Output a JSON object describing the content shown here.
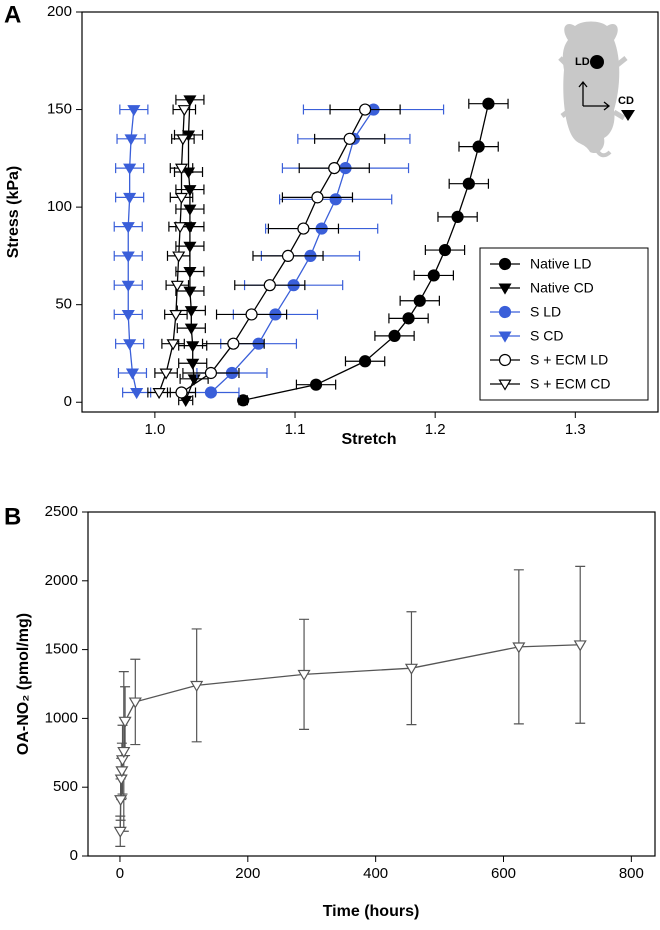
{
  "chart_data": [
    {
      "type": "line",
      "panel": "A",
      "x_label": "Stretch",
      "y_label": "Stress (kPa)",
      "xlim": [
        0.948,
        1.359
      ],
      "ylim": [
        -5,
        200
      ],
      "xticks": [
        {
          "value": 1,
          "label": "1.0"
        },
        1.1,
        1.2,
        1.3
      ],
      "yticks": [
        0,
        50,
        100,
        150,
        200
      ],
      "legend": "lower right",
      "inset_labels": [
        "LD",
        "CD"
      ],
      "series": [
        {
          "name": "Native LD",
          "color": "#000000",
          "marker": "circle",
          "open": false,
          "x": [
            1.063,
            1.115,
            1.15,
            1.171,
            1.181,
            1.189,
            1.199,
            1.207,
            1.216,
            1.224,
            1.231,
            1.238
          ],
          "y": [
            1,
            9,
            21,
            34,
            43,
            52,
            65,
            78,
            95,
            112,
            131,
            153
          ],
          "xerr": [
            0.003,
            0.014,
            0.014,
            0.014,
            0.014,
            0.014,
            0.014,
            0.014,
            0.014,
            0.014,
            0.014,
            0.014
          ]
        },
        {
          "name": "Native CD",
          "color": "#000000",
          "marker": "triangle-down",
          "open": false,
          "x": [
            1.022,
            1.028,
            1.027,
            1.027,
            1.026,
            1.026,
            1.025,
            1.025,
            1.025,
            1.025,
            1.025,
            1.025,
            1.024,
            1.024,
            1.025
          ],
          "y": [
            1,
            12,
            20,
            29,
            38,
            47,
            57,
            67,
            80,
            90,
            99,
            109,
            118,
            137,
            155
          ],
          "xerr": [
            0.005,
            0.01,
            0.01,
            0.01,
            0.01,
            0.01,
            0.01,
            0.01,
            0.01,
            0.01,
            0.01,
            0.01,
            0.01,
            0.01,
            0.01
          ]
        },
        {
          "name": "S LD",
          "color": "#3a5fd9",
          "marker": "circle",
          "open": false,
          "x": [
            1.04,
            1.055,
            1.074,
            1.086,
            1.099,
            1.111,
            1.119,
            1.129,
            1.136,
            1.142,
            1.156
          ],
          "y": [
            5,
            15,
            30,
            45,
            60,
            75,
            89,
            104,
            120,
            135,
            150
          ],
          "xerr": [
            0.02,
            0.025,
            0.027,
            0.03,
            0.035,
            0.035,
            0.04,
            0.04,
            0.045,
            0.04,
            0.05
          ]
        },
        {
          "name": "S CD",
          "color": "#3a5fd9",
          "marker": "triangle-down",
          "open": false,
          "x": [
            0.987,
            0.984,
            0.982,
            0.981,
            0.981,
            0.981,
            0.981,
            0.982,
            0.982,
            0.983,
            0.985
          ],
          "y": [
            5,
            15,
            30,
            45,
            60,
            75,
            90,
            105,
            120,
            135,
            150
          ],
          "xerr": [
            0.01,
            0.01,
            0.01,
            0.01,
            0.01,
            0.01,
            0.01,
            0.01,
            0.01,
            0.01,
            0.01
          ]
        },
        {
          "name": "S + ECM LD",
          "color": "#000000",
          "marker": "circle",
          "open": true,
          "x": [
            1.019,
            1.04,
            1.056,
            1.069,
            1.082,
            1.095,
            1.106,
            1.116,
            1.128,
            1.139,
            1.15
          ],
          "y": [
            5,
            15,
            30,
            45,
            60,
            75,
            89,
            105,
            120,
            135,
            150
          ],
          "xerr": [
            0.01,
            0.02,
            0.022,
            0.025,
            0.025,
            0.025,
            0.025,
            0.025,
            0.025,
            0.025,
            0.025
          ]
        },
        {
          "name": "S + ECM CD",
          "color": "#000000",
          "marker": "triangle-down",
          "open": true,
          "x": [
            1.003,
            1.008,
            1.013,
            1.015,
            1.016,
            1.017,
            1.018,
            1.019,
            1.019,
            1.02,
            1.021
          ],
          "y": [
            5,
            15,
            30,
            45,
            60,
            75,
            90,
            105,
            120,
            135,
            150
          ],
          "xerr": [
            0.008,
            0.008,
            0.008,
            0.008,
            0.008,
            0.008,
            0.008,
            0.008,
            0.008,
            0.008,
            0.008
          ]
        }
      ]
    },
    {
      "type": "line",
      "panel": "B",
      "x_label": "Time (hours)",
      "y_label": "OA-NO₂ (pmol/mg)",
      "xlim": [
        -50,
        837
      ],
      "ylim": [
        0,
        2500
      ],
      "xticks": [
        0,
        200,
        400,
        600,
        800
      ],
      "yticks": [
        0,
        500,
        1000,
        1500,
        2000,
        2500
      ],
      "color": "#555555",
      "marker": "triangle-down",
      "open": true,
      "x": [
        0.5,
        1,
        2,
        3,
        4,
        6,
        8,
        24,
        120,
        288,
        456,
        624,
        720
      ],
      "values": [
        180,
        410,
        560,
        620,
        700,
        760,
        980,
        1120,
        1240,
        1320,
        1365,
        1520,
        1535
      ],
      "yerr": [
        110,
        150,
        150,
        200,
        250,
        580,
        250,
        310,
        410,
        400,
        410,
        560,
        570
      ]
    }
  ]
}
